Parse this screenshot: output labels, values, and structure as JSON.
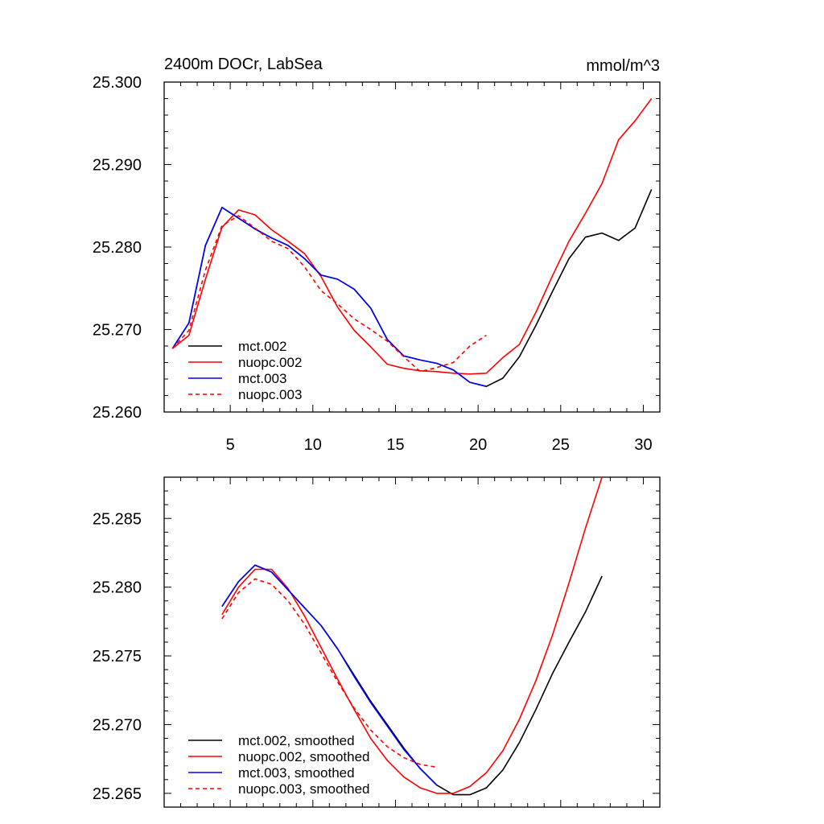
{
  "chart_data": [
    {
      "type": "line",
      "title": "2400m DOCr, LabSea",
      "units": "mmol/m^3",
      "xlabel": "",
      "ylabel": "",
      "xlim": [
        1,
        31
      ],
      "ylim": [
        25.26,
        25.3
      ],
      "x_ticks": [
        5,
        10,
        15,
        20,
        25,
        30
      ],
      "x_tick_labels": [
        "5",
        "10",
        "15",
        "20",
        "25",
        "30"
      ],
      "y_ticks": [
        25.26,
        25.27,
        25.28,
        25.29,
        25.3
      ],
      "y_tick_labels": [
        "25.260",
        "25.270",
        "25.280",
        "25.290",
        "25.300"
      ],
      "legend_position": "bottom-left",
      "series": [
        {
          "name": "mct.002",
          "color": "#000000",
          "dash": "solid",
          "x": [
            1.5,
            2.5,
            3.5,
            4.5,
            5.5,
            6.5,
            7.5,
            8.5,
            9.5,
            10.5,
            11.5,
            12.5,
            13.5,
            14.5,
            15.5,
            16.5,
            17.5,
            18.5,
            19.5,
            20.5,
            21.5,
            22.5,
            23.5,
            24.5,
            25.5,
            26.5,
            27.5,
            28.5,
            29.5,
            30.5
          ],
          "values": [
            25.2677,
            25.2708,
            25.2802,
            25.2848,
            25.2835,
            25.2822,
            25.2811,
            25.2802,
            25.2786,
            25.2766,
            25.2761,
            25.2749,
            25.2726,
            25.2688,
            25.2668,
            25.2663,
            25.2659,
            25.2651,
            25.2636,
            25.2631,
            25.2641,
            25.2667,
            25.2705,
            25.2746,
            25.2786,
            25.2812,
            25.2817,
            25.2808,
            25.2823,
            25.287
          ]
        },
        {
          "name": "nuopc.002",
          "color": "#ff0000",
          "dash": "solid",
          "x": [
            1.5,
            2.5,
            3.5,
            4.5,
            5.5,
            6.5,
            7.5,
            8.5,
            9.5,
            10.5,
            11.5,
            12.5,
            13.5,
            14.5,
            15.5,
            16.5,
            17.5,
            18.5,
            19.5,
            20.5,
            21.5,
            22.5,
            23.5,
            24.5,
            25.5,
            26.5,
            27.5,
            28.5,
            29.5,
            30.5
          ],
          "values": [
            25.2677,
            25.2693,
            25.2761,
            25.2824,
            25.2845,
            25.2839,
            25.2821,
            25.2807,
            25.2792,
            25.2764,
            25.2727,
            25.2699,
            25.2679,
            25.2658,
            25.2653,
            25.265,
            25.2649,
            25.2647,
            25.2646,
            25.2647,
            25.2666,
            25.2682,
            25.2721,
            25.2765,
            25.2807,
            25.2841,
            25.2877,
            25.293,
            25.2953,
            25.298
          ]
        },
        {
          "name": "mct.003",
          "color": "#0000ff",
          "dash": "solid",
          "x": [
            1.5,
            2.5,
            3.5,
            4.5,
            5.5,
            6.5,
            7.5,
            8.5,
            9.5,
            10.5,
            11.5,
            12.5,
            13.5,
            14.5,
            15.5,
            16.5,
            17.5,
            18.5,
            19.5,
            20.5
          ],
          "values": [
            25.2677,
            25.2708,
            25.2802,
            25.2848,
            25.2835,
            25.2822,
            25.2811,
            25.2802,
            25.2786,
            25.2766,
            25.2761,
            25.2749,
            25.2726,
            25.2688,
            25.2668,
            25.2663,
            25.2659,
            25.2651,
            25.2636,
            25.2631
          ]
        },
        {
          "name": "nuopc.003",
          "color": "#ff0000",
          "dash": "dashed",
          "x": [
            1.5,
            2.5,
            3.5,
            4.5,
            5.5,
            6.5,
            7.5,
            8.5,
            9.5,
            10.5,
            11.5,
            12.5,
            13.5,
            14.5,
            15.5,
            16.5,
            17.5,
            18.5,
            19.5,
            20.5
          ],
          "values": [
            25.2677,
            25.2699,
            25.2772,
            25.2826,
            25.2838,
            25.2823,
            25.2807,
            25.2798,
            25.2776,
            25.2747,
            25.2731,
            25.2713,
            25.27,
            25.2686,
            25.2667,
            25.2649,
            25.2654,
            25.266,
            25.268,
            25.2693
          ]
        }
      ]
    },
    {
      "type": "line",
      "title": "",
      "xlabel": "",
      "ylabel": "",
      "xlim": [
        1,
        31
      ],
      "ylim": [
        25.264,
        25.288
      ],
      "x_ticks": [
        5,
        10,
        15,
        20,
        25,
        30
      ],
      "y_ticks": [
        25.265,
        25.27,
        25.275,
        25.28,
        25.285
      ],
      "y_tick_labels": [
        "25.265",
        "25.270",
        "25.275",
        "25.280",
        "25.285"
      ],
      "legend_position": "bottom-left",
      "series": [
        {
          "name": "mct.002, smoothed",
          "color": "#000000",
          "dash": "solid",
          "x": [
            4.5,
            5.5,
            6.5,
            7.5,
            8.5,
            9.5,
            10.5,
            11.5,
            12.5,
            13.5,
            14.5,
            15.5,
            16.5,
            17.5,
            18.5,
            19.5,
            20.5,
            21.5,
            22.5,
            23.5,
            24.5,
            25.5,
            26.5,
            27.5
          ],
          "values": [
            25.2786,
            25.2804,
            25.2816,
            25.2811,
            25.2798,
            25.2785,
            25.2772,
            25.2755,
            25.2736,
            25.2717,
            25.27,
            25.2683,
            25.2668,
            25.2656,
            25.2649,
            25.2649,
            25.2654,
            25.2667,
            25.2687,
            25.2711,
            25.2737,
            25.276,
            25.2782,
            25.2808
          ]
        },
        {
          "name": "nuopc.002, smoothed",
          "color": "#ff0000",
          "dash": "solid",
          "x": [
            4.5,
            5.5,
            6.5,
            7.5,
            8.5,
            9.5,
            10.5,
            11.5,
            12.5,
            13.5,
            14.5,
            15.5,
            16.5,
            17.5,
            18.5,
            19.5,
            20.5,
            21.5,
            22.5,
            23.5,
            24.5,
            25.5,
            26.5,
            27.5
          ],
          "values": [
            25.278,
            25.28,
            25.2813,
            25.2813,
            25.2799,
            25.2779,
            25.2756,
            25.2733,
            25.2711,
            25.269,
            25.2674,
            25.2662,
            25.2654,
            25.265,
            25.265,
            25.2655,
            25.2665,
            25.2681,
            25.2704,
            25.2732,
            25.2765,
            25.2803,
            25.2843,
            25.288
          ]
        },
        {
          "name": "mct.003, smoothed",
          "color": "#0000ff",
          "dash": "solid",
          "x": [
            4.5,
            5.5,
            6.5,
            7.5,
            8.5,
            9.5,
            10.5,
            11.5,
            12.5,
            13.5,
            14.5,
            15.5,
            16.5,
            17.5
          ],
          "values": [
            25.2786,
            25.2804,
            25.2816,
            25.2811,
            25.2798,
            25.2785,
            25.2772,
            25.2755,
            25.2735,
            25.2716,
            25.2699,
            25.2682,
            25.2668,
            25.2656
          ]
        },
        {
          "name": "nuopc.003, smoothed",
          "color": "#ff0000",
          "dash": "dashed",
          "x": [
            4.5,
            5.5,
            6.5,
            7.5,
            8.5,
            9.5,
            10.5,
            11.5,
            12.5,
            13.5,
            14.5,
            15.5,
            16.5,
            17.5
          ],
          "values": [
            25.2777,
            25.2796,
            25.2806,
            25.2802,
            25.279,
            25.2773,
            25.2752,
            25.2731,
            25.2712,
            25.2696,
            25.2684,
            25.2676,
            25.2671,
            25.2669
          ]
        }
      ]
    }
  ]
}
